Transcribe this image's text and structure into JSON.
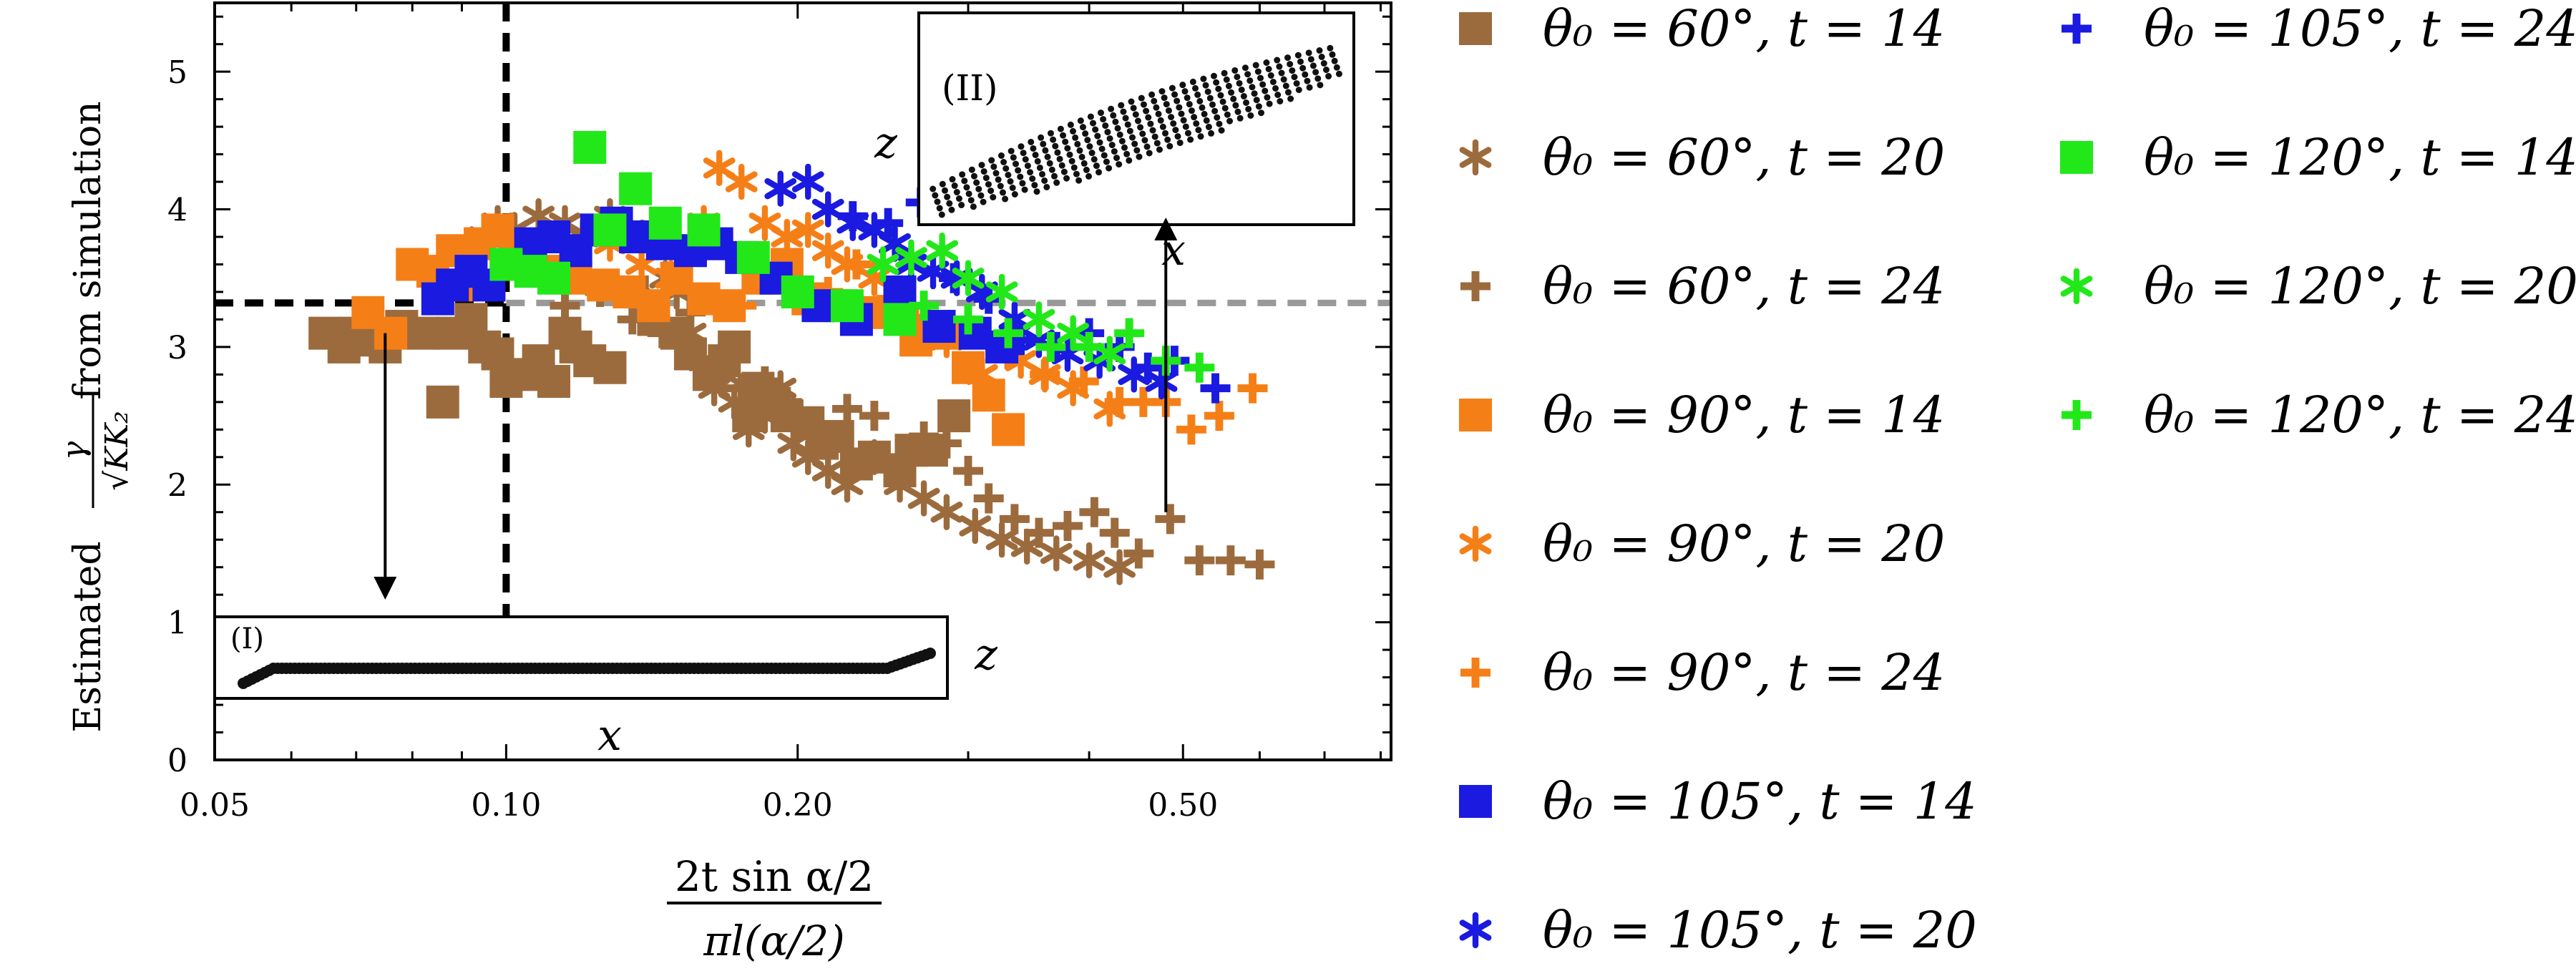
{
  "chart_data": {
    "type": "scatter",
    "xscale": "log",
    "xlim": [
      0.05,
      0.82
    ],
    "ylim": [
      0,
      5.5
    ],
    "xticks": [
      {
        "value": 0.05,
        "label": "0.05"
      },
      {
        "value": 0.1,
        "label": "0.10"
      },
      {
        "value": 0.2,
        "label": "0.20"
      },
      {
        "value": 0.5,
        "label": "0.50"
      }
    ],
    "yticks": [
      {
        "value": 0,
        "label": "0"
      },
      {
        "value": 1,
        "label": "1"
      },
      {
        "value": 2,
        "label": "2"
      },
      {
        "value": 3,
        "label": "3"
      },
      {
        "value": 4,
        "label": "4"
      },
      {
        "value": 5,
        "label": "5"
      }
    ],
    "xlabel": {
      "num": "2t sin α/2",
      "den": "πl(α/2)"
    },
    "ylabel": {
      "prefix": "Estimated",
      "frac_num": "γ",
      "frac_den": "√KK₂",
      "suffix": "from simulation"
    },
    "reference_lines": [
      {
        "style": "black-dashed-vertical",
        "x": 0.1
      },
      {
        "style": "black-dashed-horizontal",
        "y": 3.32,
        "x_end": 0.1
      },
      {
        "style": "gray-dashed-horizontal",
        "y": 3.32,
        "x_start": 0.1
      }
    ],
    "insets": [
      {
        "label": "(I)",
        "xlabel": "x",
        "ylabel": "z",
        "annotation_arrow_from": [
          0.075,
          3.1
        ]
      },
      {
        "label": "(II)",
        "xlabel": "x",
        "ylabel": "z",
        "annotation_arrow_from": [
          0.48,
          1.8
        ]
      }
    ],
    "series": [
      {
        "name": "θ₀ = 60°, t = 14",
        "color": "#9C6B3D",
        "marker": "square",
        "points": [
          [
            0.065,
            3.1
          ],
          [
            0.068,
            3.0
          ],
          [
            0.07,
            3.1
          ],
          [
            0.072,
            3.05
          ],
          [
            0.075,
            3.0
          ],
          [
            0.078,
            3.15
          ],
          [
            0.082,
            3.1
          ],
          [
            0.086,
            2.6
          ],
          [
            0.088,
            3.1
          ],
          [
            0.092,
            3.2
          ],
          [
            0.095,
            3.0
          ],
          [
            0.098,
            2.95
          ],
          [
            0.1,
            2.75
          ],
          [
            0.105,
            2.8
          ],
          [
            0.108,
            2.9
          ],
          [
            0.112,
            2.75
          ],
          [
            0.115,
            3.1
          ],
          [
            0.118,
            3.0
          ],
          [
            0.122,
            2.9
          ],
          [
            0.128,
            2.85
          ],
          [
            0.135,
            3.4
          ],
          [
            0.142,
            3.2
          ],
          [
            0.15,
            3.1
          ],
          [
            0.155,
            2.95
          ],
          [
            0.162,
            2.8
          ],
          [
            0.168,
            2.9
          ],
          [
            0.172,
            3.0
          ],
          [
            0.178,
            2.5
          ],
          [
            0.182,
            2.7
          ],
          [
            0.188,
            2.6
          ],
          [
            0.195,
            2.5
          ],
          [
            0.205,
            2.45
          ],
          [
            0.212,
            2.3
          ],
          [
            0.22,
            2.35
          ],
          [
            0.23,
            2.15
          ],
          [
            0.24,
            2.2
          ],
          [
            0.255,
            2.1
          ],
          [
            0.262,
            2.25
          ],
          [
            0.275,
            2.25
          ],
          [
            0.29,
            2.5
          ]
        ]
      },
      {
        "name": "θ₀ = 60°, t = 20",
        "color": "#9C6B3D",
        "marker": "asterisk",
        "points": [
          [
            0.095,
            3.8
          ],
          [
            0.098,
            3.9
          ],
          [
            0.102,
            3.85
          ],
          [
            0.108,
            3.95
          ],
          [
            0.115,
            3.9
          ],
          [
            0.12,
            3.8
          ],
          [
            0.128,
            3.95
          ],
          [
            0.134,
            3.85
          ],
          [
            0.14,
            3.3
          ],
          [
            0.146,
            3.5
          ],
          [
            0.15,
            3.4
          ],
          [
            0.155,
            3.1
          ],
          [
            0.16,
            2.9
          ],
          [
            0.164,
            2.7
          ],
          [
            0.168,
            2.8
          ],
          [
            0.172,
            2.6
          ],
          [
            0.178,
            2.4
          ],
          [
            0.185,
            2.5
          ],
          [
            0.192,
            2.7
          ],
          [
            0.198,
            2.3
          ],
          [
            0.205,
            2.2
          ],
          [
            0.215,
            2.1
          ],
          [
            0.225,
            2.0
          ],
          [
            0.24,
            2.2
          ],
          [
            0.255,
            2.0
          ],
          [
            0.27,
            1.9
          ],
          [
            0.285,
            1.8
          ],
          [
            0.305,
            1.7
          ],
          [
            0.325,
            1.6
          ],
          [
            0.345,
            1.55
          ],
          [
            0.37,
            1.5
          ],
          [
            0.4,
            1.45
          ],
          [
            0.43,
            1.4
          ]
        ]
      },
      {
        "name": "θ₀ = 60°, t = 24",
        "color": "#9C6B3D",
        "marker": "plus",
        "points": [
          [
            0.115,
            3.3
          ],
          [
            0.125,
            3.4
          ],
          [
            0.135,
            3.2
          ],
          [
            0.145,
            3.1
          ],
          [
            0.155,
            3.25
          ],
          [
            0.165,
            2.9
          ],
          [
            0.175,
            2.7
          ],
          [
            0.185,
            2.75
          ],
          [
            0.195,
            2.6
          ],
          [
            0.205,
            2.45
          ],
          [
            0.215,
            2.35
          ],
          [
            0.225,
            2.55
          ],
          [
            0.24,
            2.5
          ],
          [
            0.255,
            2.2
          ],
          [
            0.27,
            2.35
          ],
          [
            0.285,
            2.3
          ],
          [
            0.3,
            2.1
          ],
          [
            0.315,
            1.9
          ],
          [
            0.335,
            1.75
          ],
          [
            0.355,
            1.65
          ],
          [
            0.38,
            1.7
          ],
          [
            0.405,
            1.8
          ],
          [
            0.425,
            1.65
          ],
          [
            0.45,
            1.5
          ],
          [
            0.485,
            1.75
          ],
          [
            0.52,
            1.45
          ],
          [
            0.56,
            1.45
          ],
          [
            0.6,
            1.42
          ]
        ]
      },
      {
        "name": "θ₀ = 90°, t = 14",
        "color": "#F57F17",
        "marker": "square",
        "points": [
          [
            0.072,
            3.25
          ],
          [
            0.076,
            3.1
          ],
          [
            0.08,
            3.6
          ],
          [
            0.084,
            3.55
          ],
          [
            0.088,
            3.7
          ],
          [
            0.09,
            3.45
          ],
          [
            0.094,
            3.75
          ],
          [
            0.098,
            3.85
          ],
          [
            0.102,
            3.7
          ],
          [
            0.11,
            3.55
          ],
          [
            0.118,
            3.5
          ],
          [
            0.126,
            3.45
          ],
          [
            0.134,
            3.4
          ],
          [
            0.142,
            3.3
          ],
          [
            0.15,
            3.5
          ],
          [
            0.16,
            3.35
          ],
          [
            0.17,
            3.3
          ],
          [
            0.182,
            3.5
          ],
          [
            0.195,
            3.6
          ],
          [
            0.205,
            3.35
          ],
          [
            0.22,
            3.3
          ],
          [
            0.24,
            3.25
          ],
          [
            0.265,
            3.05
          ],
          [
            0.285,
            3.1
          ],
          [
            0.3,
            2.85
          ],
          [
            0.315,
            2.65
          ],
          [
            0.33,
            2.4
          ]
        ]
      },
      {
        "name": "θ₀ = 90°, t = 20",
        "color": "#F57F17",
        "marker": "asterisk",
        "points": [
          [
            0.128,
            3.75
          ],
          [
            0.138,
            3.6
          ],
          [
            0.148,
            3.5
          ],
          [
            0.16,
            3.9
          ],
          [
            0.166,
            4.3
          ],
          [
            0.175,
            4.2
          ],
          [
            0.185,
            3.9
          ],
          [
            0.195,
            3.8
          ],
          [
            0.205,
            3.85
          ],
          [
            0.215,
            3.7
          ],
          [
            0.225,
            3.6
          ],
          [
            0.24,
            3.5
          ],
          [
            0.265,
            3.2
          ],
          [
            0.285,
            3.05
          ],
          [
            0.31,
            2.8
          ],
          [
            0.34,
            2.9
          ],
          [
            0.36,
            2.8
          ],
          [
            0.385,
            2.7
          ],
          [
            0.42,
            2.55
          ]
        ]
      },
      {
        "name": "θ₀ = 90°, t = 24",
        "color": "#F57F17",
        "marker": "plus",
        "points": [
          [
            0.175,
            3.3
          ],
          [
            0.195,
            3.5
          ],
          [
            0.215,
            3.4
          ],
          [
            0.23,
            3.6
          ],
          [
            0.25,
            3.35
          ],
          [
            0.27,
            3.2
          ],
          [
            0.3,
            3.1
          ],
          [
            0.33,
            2.95
          ],
          [
            0.36,
            2.8
          ],
          [
            0.395,
            2.75
          ],
          [
            0.43,
            2.6
          ],
          [
            0.455,
            2.6
          ],
          [
            0.48,
            2.6
          ],
          [
            0.51,
            2.4
          ],
          [
            0.545,
            2.5
          ],
          [
            0.59,
            2.7
          ]
        ]
      },
      {
        "name": "θ₀ = 105°, t = 14",
        "color": "#1A1AE0",
        "marker": "square",
        "points": [
          [
            0.085,
            3.35
          ],
          [
            0.088,
            3.45
          ],
          [
            0.092,
            3.55
          ],
          [
            0.096,
            3.45
          ],
          [
            0.1,
            3.6
          ],
          [
            0.106,
            3.75
          ],
          [
            0.112,
            3.8
          ],
          [
            0.118,
            3.7
          ],
          [
            0.124,
            3.85
          ],
          [
            0.13,
            3.9
          ],
          [
            0.136,
            3.8
          ],
          [
            0.145,
            3.75
          ],
          [
            0.155,
            3.7
          ],
          [
            0.165,
            3.75
          ],
          [
            0.175,
            3.65
          ],
          [
            0.19,
            3.5
          ],
          [
            0.21,
            3.3
          ],
          [
            0.23,
            3.2
          ],
          [
            0.255,
            3.4
          ],
          [
            0.28,
            3.15
          ],
          [
            0.305,
            3.1
          ],
          [
            0.325,
            3.0
          ]
        ]
      },
      {
        "name": "θ₀ = 105°, t = 20",
        "color": "#1A1AE0",
        "marker": "asterisk",
        "points": [
          [
            0.192,
            4.15
          ],
          [
            0.205,
            4.2
          ],
          [
            0.215,
            4.0
          ],
          [
            0.228,
            3.9
          ],
          [
            0.24,
            3.85
          ],
          [
            0.252,
            3.75
          ],
          [
            0.262,
            3.6
          ],
          [
            0.276,
            3.55
          ],
          [
            0.292,
            3.5
          ],
          [
            0.31,
            3.4
          ],
          [
            0.335,
            3.2
          ],
          [
            0.355,
            3.05
          ],
          [
            0.38,
            2.95
          ],
          [
            0.41,
            2.9
          ],
          [
            0.445,
            2.8
          ],
          [
            0.475,
            2.75
          ]
        ]
      },
      {
        "name": "θ₀ = 105°, t = 24",
        "color": "#1A1AE0",
        "marker": "plus",
        "points": [
          [
            0.228,
            3.95
          ],
          [
            0.248,
            3.9
          ],
          [
            0.268,
            4.05
          ],
          [
            0.29,
            3.5
          ],
          [
            0.315,
            3.35
          ],
          [
            0.34,
            3.05
          ],
          [
            0.37,
            3.0
          ],
          [
            0.4,
            3.1
          ],
          [
            0.43,
            3.0
          ],
          [
            0.46,
            2.85
          ],
          [
            0.49,
            2.9
          ],
          [
            0.54,
            2.7
          ]
        ]
      },
      {
        "name": "θ₀ = 120°, t = 14",
        "color": "#22E81A",
        "marker": "square",
        "points": [
          [
            0.1,
            3.6
          ],
          [
            0.106,
            3.55
          ],
          [
            0.112,
            3.5
          ],
          [
            0.122,
            4.45
          ],
          [
            0.128,
            3.85
          ],
          [
            0.136,
            4.15
          ],
          [
            0.146,
            3.9
          ],
          [
            0.16,
            3.85
          ],
          [
            0.18,
            3.65
          ],
          [
            0.2,
            3.4
          ],
          [
            0.225,
            3.3
          ],
          [
            0.255,
            3.2
          ]
        ]
      },
      {
        "name": "θ₀ = 120°, t = 20",
        "color": "#22E81A",
        "marker": "asterisk",
        "points": [
          [
            0.245,
            3.6
          ],
          [
            0.262,
            3.65
          ],
          [
            0.282,
            3.7
          ],
          [
            0.3,
            3.5
          ],
          [
            0.325,
            3.4
          ],
          [
            0.355,
            3.2
          ],
          [
            0.385,
            3.1
          ],
          [
            0.42,
            2.95
          ]
        ]
      },
      {
        "name": "θ₀ = 120°, t = 24",
        "color": "#22E81A",
        "marker": "plus",
        "points": [
          [
            0.27,
            3.3
          ],
          [
            0.3,
            3.2
          ],
          [
            0.33,
            3.1
          ],
          [
            0.365,
            3.0
          ],
          [
            0.4,
            3.0
          ],
          [
            0.44,
            3.1
          ],
          [
            0.48,
            2.9
          ],
          [
            0.52,
            2.85
          ]
        ]
      }
    ]
  }
}
